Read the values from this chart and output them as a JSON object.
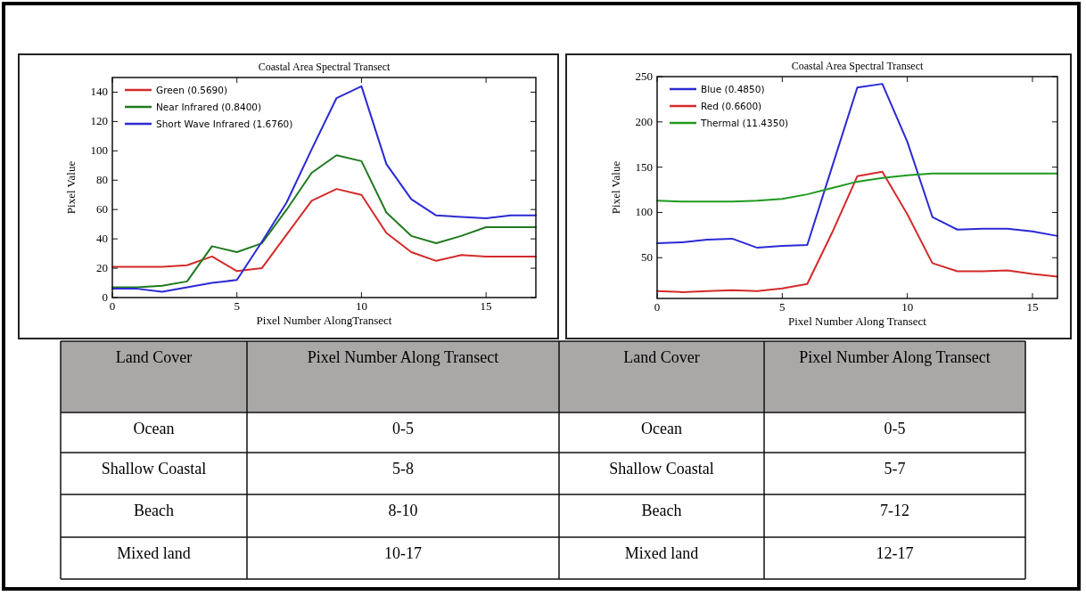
{
  "chart_data": [
    {
      "type": "line",
      "title": "Coastal Area Spectral Transect",
      "xlabel": "Pixel Number AlongTransect",
      "ylabel": "Pixel Value",
      "x": [
        0,
        1,
        2,
        3,
        4,
        5,
        6,
        7,
        8,
        9,
        10,
        11,
        12,
        13,
        14,
        15,
        16,
        17
      ],
      "xlim": [
        0,
        17
      ],
      "xticks": [
        0,
        5,
        10,
        15
      ],
      "ylim": [
        0,
        150
      ],
      "yticks": [
        0,
        20,
        40,
        60,
        80,
        100,
        120,
        140
      ],
      "legend": "top left",
      "grid": false,
      "marker": "none",
      "line_style": "solid",
      "series": [
        {
          "name": "Green (0.5690)",
          "color": "#d42a2a",
          "values": [
            21,
            21,
            21,
            22,
            28,
            18,
            20,
            43,
            66,
            74,
            70,
            44,
            31,
            25,
            29,
            28,
            28,
            28
          ]
        },
        {
          "name": "Near Infrared (0.8400)",
          "color": "#1f7a1f",
          "values": [
            7,
            7,
            8,
            11,
            35,
            31,
            37,
            60,
            85,
            97,
            93,
            58,
            42,
            37,
            42,
            48,
            48,
            48
          ]
        },
        {
          "name": "Short Wave Infrared (1.6760)",
          "color": "#2a2ad4",
          "values": [
            6,
            6,
            4,
            7,
            10,
            12,
            38,
            65,
            101,
            136,
            144,
            91,
            67,
            56,
            55,
            54,
            56,
            56
          ]
        }
      ]
    },
    {
      "type": "line",
      "title": "Coastal Area Spectral Transect",
      "xlabel": "Pixel Number Along Transect",
      "ylabel": "Pixel Value",
      "x": [
        0,
        1,
        2,
        3,
        4,
        5,
        6,
        7,
        8,
        9,
        10,
        11,
        12,
        13,
        14,
        15,
        16
      ],
      "xlim": [
        0,
        16
      ],
      "xticks": [
        0,
        5,
        10,
        15
      ],
      "ylim": [
        5,
        250
      ],
      "yticks": [
        50,
        100,
        150,
        200,
        250
      ],
      "legend": "top left",
      "grid": false,
      "marker": "none",
      "line_style": "solid",
      "series": [
        {
          "name": "Blue (0.4850)",
          "color": "#2a2ad4",
          "values": [
            66,
            67,
            70,
            71,
            61,
            63,
            64,
            151,
            238,
            242,
            178,
            95,
            81,
            82,
            82,
            79,
            74
          ]
        },
        {
          "name": "Red (0.6600)",
          "color": "#d42a2a",
          "values": [
            13,
            12,
            13,
            14,
            13,
            16,
            21,
            78,
            140,
            145,
            98,
            44,
            35,
            35,
            36,
            32,
            29
          ]
        },
        {
          "name": "Thermal (11.4350)",
          "color": "#1f9a1f",
          "values": [
            113,
            112,
            112,
            112,
            113,
            115,
            120,
            127,
            134,
            138,
            141,
            143,
            143,
            143,
            143,
            143,
            143
          ]
        }
      ]
    },
    {
      "type": "other",
      "annotations": [
        "Land Cover",
        "Pixel Number Along Transect",
        "Land Cover",
        "Pixel Number Along Transect",
        "Ocean",
        "0-5",
        "Ocean",
        "0-5",
        "Shallow Coastal",
        "5-8",
        "Shallow Coastal",
        "5-7",
        "Beach",
        "8-10",
        "Beach",
        "7-12",
        "Mixed land",
        "10-17",
        "Mixed land",
        "12-17"
      ]
    }
  ]
}
